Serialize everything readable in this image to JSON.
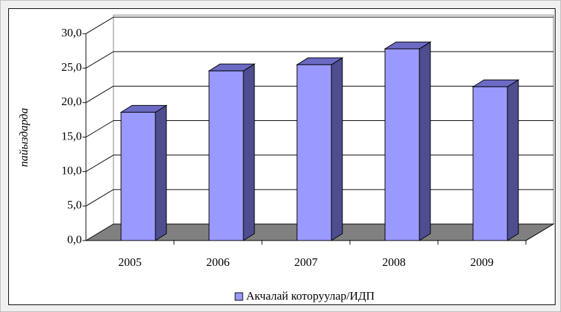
{
  "chart_data": {
    "type": "bar3d",
    "y_label": "пайыздарда",
    "categories": [
      "2005",
      "2006",
      "2007",
      "2008",
      "2009"
    ],
    "series": [
      {
        "name": "Акчалай которуулар/ИДП",
        "color": "#9999ff",
        "values": [
          18.6,
          24.6,
          25.5,
          27.8,
          22.3
        ]
      }
    ],
    "ylim": [
      0,
      30
    ],
    "yticks": [
      {
        "value": 0,
        "label": "0,0"
      },
      {
        "value": 5,
        "label": "5,0"
      },
      {
        "value": 10,
        "label": "10,0"
      },
      {
        "value": 15,
        "label": "15,0"
      },
      {
        "value": 20,
        "label": "20,0"
      },
      {
        "value": 25,
        "label": "25,0"
      },
      {
        "value": 30,
        "label": "30,0"
      }
    ],
    "grid": true
  }
}
